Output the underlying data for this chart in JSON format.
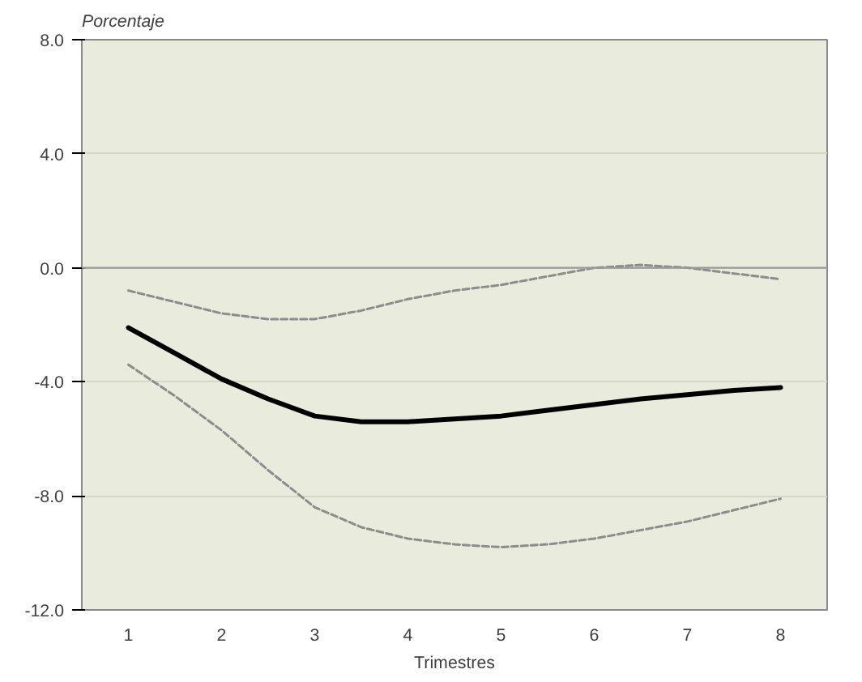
{
  "chart_data": {
    "type": "line",
    "ylabel": "Porcentaje",
    "xlabel": "Trimestres",
    "x": [
      1,
      1.5,
      2,
      2.5,
      3,
      3.5,
      4,
      4.5,
      5,
      5.5,
      6,
      6.5,
      7,
      7.5,
      8
    ],
    "series": [
      {
        "color": "#000000",
        "line_style": "solid",
        "values": [
          -2.1,
          -3.0,
          -3.9,
          -4.6,
          -5.2,
          -5.4,
          -5.4,
          -5.3,
          -5.2,
          -5.0,
          -4.8,
          -4.6,
          -4.45,
          -4.3,
          -4.2
        ]
      },
      {
        "color": "#8c8c8c",
        "line_style": "dashed",
        "values": [
          -0.8,
          -1.2,
          -1.6,
          -1.8,
          -1.8,
          -1.5,
          -1.1,
          -0.8,
          -0.6,
          -0.3,
          0.0,
          0.1,
          0.0,
          -0.2,
          -0.4
        ]
      },
      {
        "color": "#8c8c8c",
        "line_style": "dashed",
        "values": [
          -3.4,
          -4.5,
          -5.7,
          -7.1,
          -8.4,
          -9.1,
          -9.5,
          -9.7,
          -9.8,
          -9.7,
          -9.5,
          -9.2,
          -8.9,
          -8.5,
          -8.1
        ]
      }
    ],
    "xlim": [
      0.5,
      8.5
    ],
    "xticks": [
      1,
      2,
      3,
      4,
      5,
      6,
      7,
      8
    ],
    "ylim": [
      -12,
      8
    ],
    "yticks": [
      {
        "value": -12,
        "label": "-12.0"
      },
      {
        "value": -8,
        "label": "-8.0"
      },
      {
        "value": -4,
        "label": "-4.0"
      },
      {
        "value": 0,
        "label": "0.0"
      },
      {
        "value": 4,
        "label": "4.0"
      },
      {
        "value": 8,
        "label": "8.0"
      }
    ],
    "ref_lines": [
      {
        "axis": "y",
        "value": 0,
        "color": "#9a9a9a"
      }
    ],
    "grid": "y",
    "marker": "none"
  }
}
